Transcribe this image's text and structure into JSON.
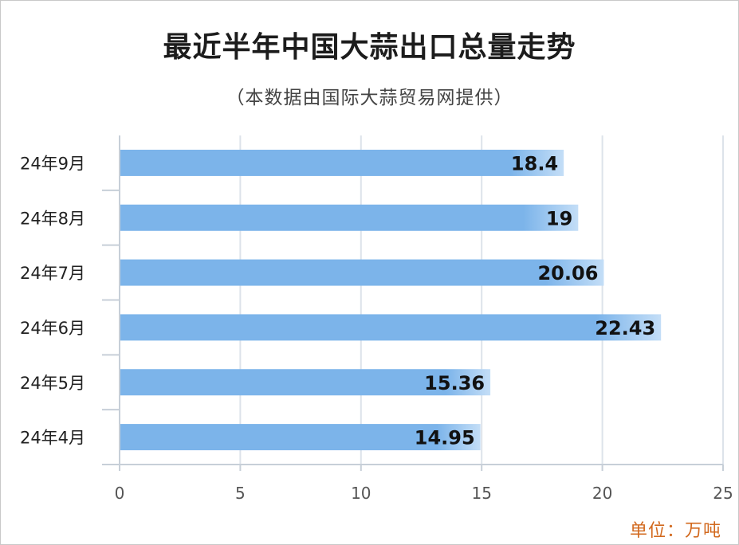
{
  "title": "最近半年中国大蒜出口总量走势",
  "subtitle": "（本数据由国际大蒜贸易网提供）",
  "unit_label": "单位：万吨",
  "colors": {
    "bar_light": "#b9d9f6",
    "bar_main": "#7cb4ea",
    "grid": "#dde3ea",
    "axis": "#c7cfd8",
    "label_text": "#111111",
    "tick_text": "#555555",
    "unit_text": "#d2691e"
  },
  "chart_data": {
    "type": "bar",
    "orientation": "horizontal",
    "categories": [
      "24年9月",
      "24年8月",
      "24年7月",
      "24年6月",
      "24年5月",
      "24年4月"
    ],
    "values": [
      18.4,
      19,
      20.06,
      22.43,
      15.36,
      14.95
    ],
    "value_labels": [
      "18.4",
      "19",
      "20.06",
      "22.43",
      "15.36",
      "14.95"
    ],
    "x_ticks": [
      "0",
      "5",
      "10",
      "15",
      "20",
      "25"
    ],
    "xlim": [
      0,
      25
    ],
    "grid": true,
    "legend": "none"
  }
}
